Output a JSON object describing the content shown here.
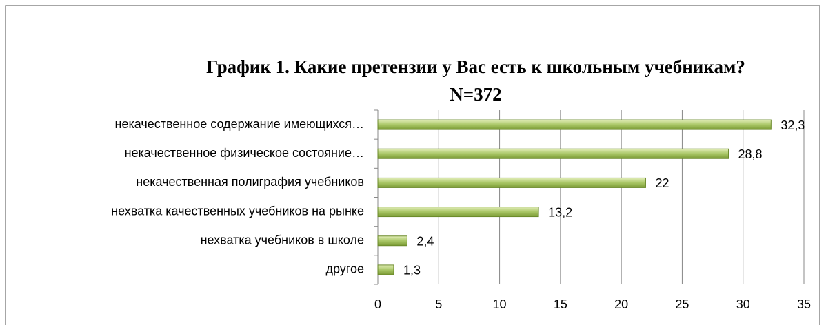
{
  "chart_data": {
    "type": "hbar",
    "title": "График 1. Какие претензии у Вас есть к школьным учебникам?",
    "subtitle": "N=372",
    "categories": [
      "некачественное содержание имеющихся…",
      "некачественное физическое состояние…",
      "некачественная полиграфия учебников",
      "нехватка качественных учебников на рынке",
      "нехватка учебников в школе",
      "другое"
    ],
    "values": [
      32.3,
      28.8,
      22,
      13.2,
      2.4,
      1.3
    ],
    "value_labels": [
      "32,3",
      "28,8",
      "22",
      "13,2",
      "2,4",
      "1,3"
    ],
    "color": "#9bbb59",
    "xlim": [
      0,
      35
    ],
    "xticks": [
      0,
      5,
      10,
      15,
      20,
      25,
      30,
      35
    ],
    "grid": true
  }
}
